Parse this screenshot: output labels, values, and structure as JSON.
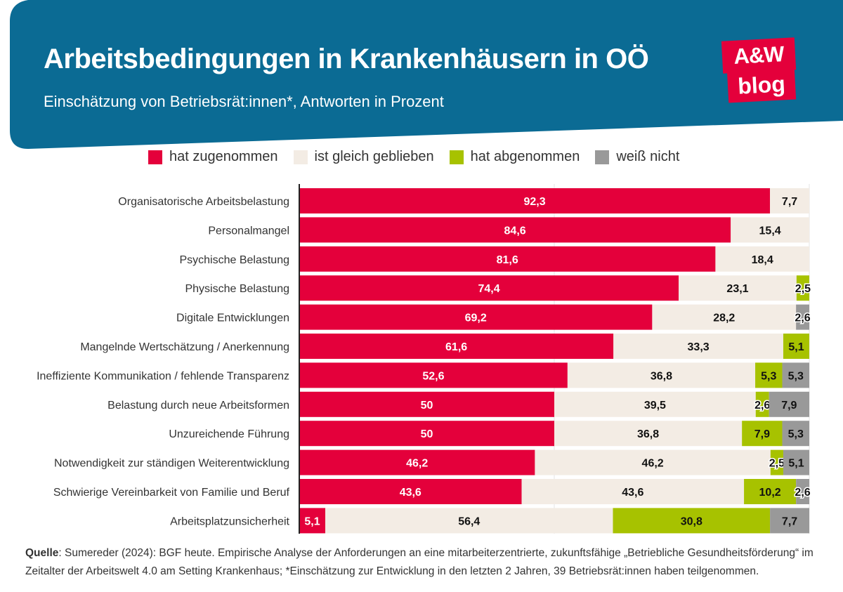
{
  "header": {
    "title": "Arbeitsbedingungen in Krankenhäusern in OÖ",
    "subtitle": "Einschätzung von Betriebsrät:innen*, Antworten in Prozent",
    "band_color": "#0b6b94"
  },
  "logo": {
    "line1": "A&W",
    "line2": "blog",
    "color": "#e4003b"
  },
  "legend": [
    {
      "label": "hat zugenommen",
      "color": "#e4003b"
    },
    {
      "label": "ist gleich geblieben",
      "color": "#f3ece4"
    },
    {
      "label": "hat abgenommen",
      "color": "#a7c200"
    },
    {
      "label": "weiß nicht",
      "color": "#999999"
    }
  ],
  "chart_data": {
    "type": "bar",
    "orientation": "horizontal",
    "stacked": true,
    "xlim": [
      0,
      100
    ],
    "categories": [
      "Organisatorische Arbeitsbelastung",
      "Personalmangel",
      "Psychische Belastung",
      "Physische Belastung",
      "Digitale Entwicklungen",
      "Mangelnde Wertschätzung / Anerkennung",
      "Ineffiziente Kommunikation / fehlende Transparenz",
      "Belastung durch neue Arbeitsformen",
      "Unzureichende Führung",
      "Notwendigkeit zur ständigen Weiterentwicklung",
      "Schwierige Vereinbarkeit von Familie und Beruf",
      "Arbeitsplatzunsicherheit"
    ],
    "series": [
      {
        "name": "hat zugenommen",
        "color": "#e4003b",
        "values": [
          92.3,
          84.6,
          81.6,
          74.4,
          69.2,
          61.6,
          52.6,
          50,
          50,
          46.2,
          43.6,
          5.1
        ],
        "labels": [
          "92,3",
          "84,6",
          "81,6",
          "74,4",
          "69,2",
          "61,6",
          "52,6",
          "50",
          "50",
          "46,2",
          "43,6",
          "5,1"
        ]
      },
      {
        "name": "ist gleich geblieben",
        "color": "#f3ece4",
        "values": [
          7.7,
          15.4,
          18.4,
          23.1,
          28.2,
          33.3,
          36.8,
          39.5,
          36.8,
          46.2,
          43.6,
          56.4
        ],
        "labels": [
          "7,7",
          "15,4",
          "18,4",
          "23,1",
          "28,2",
          "33,3",
          "36,8",
          "39,5",
          "36,8",
          "46,2",
          "43,6",
          "56,4"
        ]
      },
      {
        "name": "hat abgenommen",
        "color": "#a7c200",
        "values": [
          0,
          0,
          0,
          2.5,
          0,
          5.1,
          5.3,
          2.6,
          7.9,
          2.5,
          10.2,
          30.8
        ],
        "labels": [
          "",
          "",
          "",
          "2,5",
          "",
          "5,1",
          "5,3",
          "2,6",
          "7,9",
          "2,5",
          "10,2",
          "30,8"
        ]
      },
      {
        "name": "weiß nicht",
        "color": "#999999",
        "values": [
          0,
          0,
          0,
          0,
          2.6,
          0,
          5.3,
          7.9,
          5.3,
          5.1,
          2.6,
          7.7
        ],
        "labels": [
          "",
          "",
          "",
          "",
          "2,6",
          "",
          "5,3",
          "7,9",
          "5,3",
          "5,1",
          "2,6",
          "7,7"
        ]
      }
    ]
  },
  "footer": {
    "source_label": "Quelle",
    "source_text": ": Sumereder (2024): BGF heute. Empirische Analyse der Anforderungen an eine mitarbeiterzentrierte, zukunftsfähige „Betriebliche Gesundheitsförderung“ im Zeitalter der Arbeitswelt 4.0 am Setting Krankenhaus; *Einschätzung zur Entwicklung in den letzten 2 Jahren, 39 Betriebsrät:innen haben teilgenommen."
  }
}
